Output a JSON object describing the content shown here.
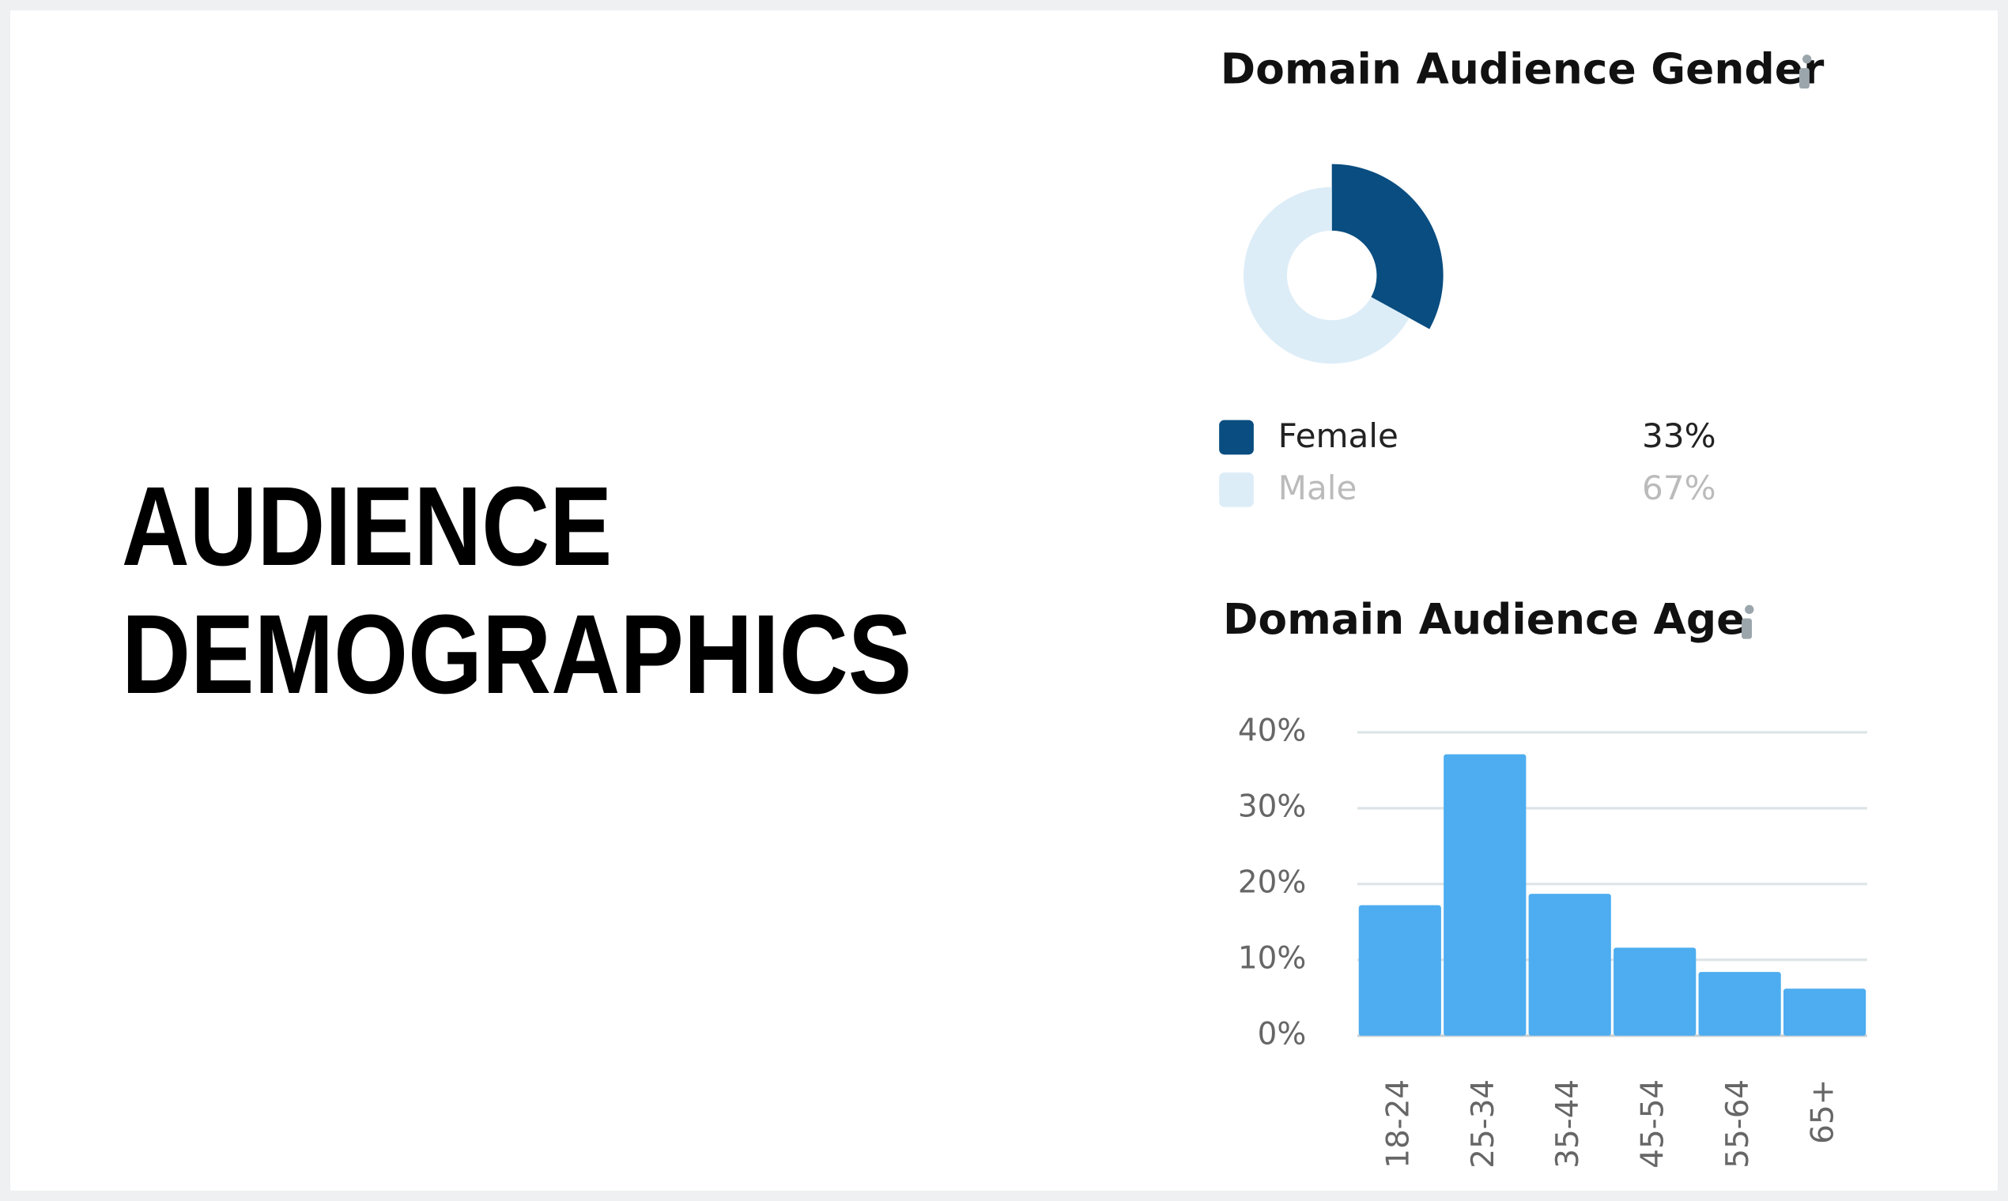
{
  "heading": {
    "lines": [
      "AUDIENCE",
      "DEMOGRAPHICS"
    ]
  },
  "chart_data": [
    {
      "type": "pie",
      "title": "Domain Audience Gender",
      "categories": [
        "Female",
        "Male"
      ],
      "values": [
        33,
        67
      ],
      "value_labels": [
        "33%",
        "67%"
      ],
      "colors": [
        "#0a4d80",
        "#ddedf8"
      ]
    },
    {
      "type": "bar",
      "title": "Domain Audience Age",
      "categories": [
        "18-24",
        "25-34",
        "35-44",
        "45-54",
        "55-64",
        "65+"
      ],
      "values": [
        17.2,
        37.1,
        18.7,
        11.6,
        8.4,
        6.2
      ],
      "color": "#4dadf0",
      "ylim": [
        0,
        40
      ],
      "yticks": [
        {
          "value": 0,
          "label": "0%"
        },
        {
          "value": 10,
          "label": "10%"
        },
        {
          "value": 20,
          "label": "20%"
        },
        {
          "value": 30,
          "label": "30%"
        },
        {
          "value": 40,
          "label": "40%"
        }
      ],
      "grid": true
    }
  ]
}
